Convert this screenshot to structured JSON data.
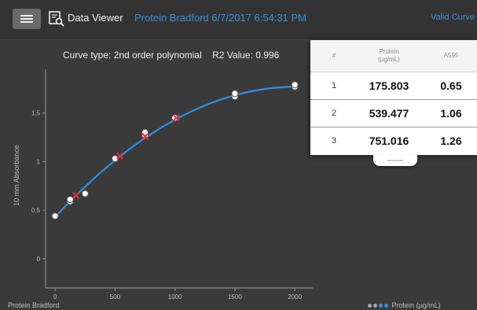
{
  "app": {
    "name": "Data Viewer",
    "document_title": "Protein Bradford 6/7/2017 6:54:31 PM",
    "valid_curve_label": "Valid Curve"
  },
  "curve_info": {
    "curve_type": "Curve type: 2nd order polynomial",
    "r2": "R2 Value: 0.996"
  },
  "footer": {
    "left": "Protein Bradford",
    "legend": "Protein (µg/mL)"
  },
  "panel": {
    "headers": [
      "#",
      "Protein\n(µg/mL)",
      "A595"
    ],
    "rows": [
      {
        "n": "1",
        "protein": "175.803",
        "a": "0.65"
      },
      {
        "n": "2",
        "protein": "539.477",
        "a": "1.06"
      },
      {
        "n": "3",
        "protein": "751.016",
        "a": "1.26"
      }
    ]
  },
  "colors": {
    "accent": "#3a8fe0",
    "background": "#3a3a3a",
    "curve": "#2e8fe6",
    "sample_marker": "#e0303a",
    "standard_marker": "#ffffff"
  },
  "chart_data": {
    "type": "scatter",
    "xlabel": "",
    "ylabel": "10 mm Absorbance",
    "xlim": [
      -80,
      2150
    ],
    "ylim": [
      -0.3,
      1.95
    ],
    "x_ticks": [
      0,
      500,
      1000,
      1500,
      2000
    ],
    "y_ticks": [
      0,
      0.5,
      1,
      1.5
    ],
    "x_tick_labels": [
      "0",
      "500",
      "1000",
      "1500",
      "2000"
    ],
    "y_tick_labels": [
      "0",
      "0.5",
      "1",
      "1.5"
    ],
    "standards": [
      {
        "x": 0,
        "y": 0.44
      },
      {
        "x": 125,
        "y": 0.59
      },
      {
        "x": 125,
        "y": 0.61
      },
      {
        "x": 250,
        "y": 0.67
      },
      {
        "x": 500,
        "y": 1.03
      },
      {
        "x": 750,
        "y": 1.27
      },
      {
        "x": 750,
        "y": 1.3
      },
      {
        "x": 1000,
        "y": 1.45
      },
      {
        "x": 1500,
        "y": 1.67
      },
      {
        "x": 1500,
        "y": 1.7
      },
      {
        "x": 2000,
        "y": 1.77
      },
      {
        "x": 2000,
        "y": 1.79
      }
    ],
    "samples": [
      {
        "x": 175.803,
        "y": 0.65
      },
      {
        "x": 539.477,
        "y": 1.06
      },
      {
        "x": 751.016,
        "y": 1.26
      },
      {
        "x": 1010,
        "y": 1.45
      }
    ],
    "fit": {
      "a": -3.3e-07,
      "b": 0.00133,
      "c": 0.43
    },
    "fit_range": [
      0,
      2000
    ],
    "grid": false
  }
}
